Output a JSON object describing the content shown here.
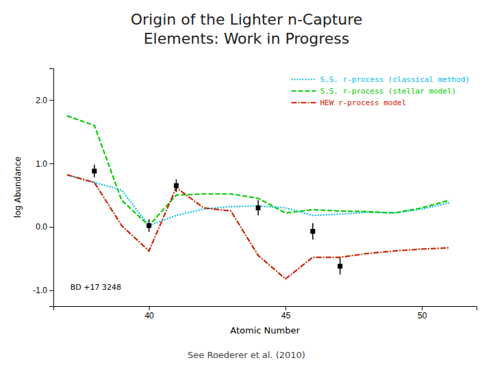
{
  "chart_data": {
    "type": "line",
    "title": "Origin of the Lighter n-Capture\nElements: Work in Progress",
    "subtitle": "See Roederer et al. (2010)",
    "x_label": "Atomic Number",
    "y_label": "log Abundance",
    "annotation": "BD +17 3248",
    "xlim": [
      36.5,
      52
    ],
    "ylim": [
      -1.25,
      2.5
    ],
    "xticks": [
      40,
      45,
      50
    ],
    "yticks": [
      {
        "value": -1.0,
        "label": "-1.0"
      },
      {
        "value": 0.0,
        "label": "0.0"
      },
      {
        "value": 1.0,
        "label": "1.0"
      },
      {
        "value": 2.0,
        "label": "2.0"
      }
    ],
    "legend": "upper right",
    "series": [
      {
        "name": "S.S. r-process (classical method)",
        "type": "line",
        "color": "#00bbee",
        "line_style": "dotted",
        "x": [
          37.0,
          38.0,
          39.0,
          40.0,
          41.0,
          42.0,
          43.0,
          44.0,
          45.0,
          46.0,
          47.0,
          48.0,
          49.0,
          50.0,
          51.0
        ],
        "values": [
          0.82,
          0.7,
          0.58,
          0.02,
          0.18,
          0.28,
          0.32,
          0.33,
          0.3,
          0.18,
          0.2,
          0.23,
          0.22,
          0.28,
          0.38
        ]
      },
      {
        "name": "S.S. r-process (stellar model)",
        "type": "line",
        "color": "#00cc00",
        "line_style": "dashed",
        "x": [
          37.0,
          38.0,
          39.0,
          40.0,
          41.0,
          42.0,
          43.0,
          44.0,
          45.0,
          46.0,
          47.0,
          48.0,
          49.0,
          50.0,
          51.0
        ],
        "values": [
          1.75,
          1.6,
          0.42,
          0.02,
          0.5,
          0.52,
          0.52,
          0.45,
          0.22,
          0.27,
          0.25,
          0.24,
          0.22,
          0.3,
          0.42
        ]
      },
      {
        "name": "HEW r-process model",
        "type": "line",
        "color": "#cc2200",
        "line_style": "dashdot",
        "x": [
          37.0,
          38.0,
          39.0,
          40.0,
          41.0,
          42.0,
          43.0,
          44.0,
          45.0,
          46.0,
          47.0,
          48.0,
          49.0,
          50.0,
          51.0
        ],
        "values": [
          0.82,
          0.7,
          0.02,
          -0.38,
          0.62,
          0.3,
          0.25,
          -0.45,
          -0.82,
          -0.48,
          -0.48,
          -0.42,
          -0.38,
          -0.35,
          -0.33
        ]
      },
      {
        "type": "scatter",
        "marker": "square",
        "color": "#000000",
        "x": [
          38,
          40,
          41,
          44,
          46,
          47
        ],
        "values": [
          0.88,
          0.02,
          0.65,
          0.3,
          -0.07,
          -0.62
        ],
        "errors": [
          0.1,
          0.1,
          0.1,
          0.12,
          0.13,
          0.13
        ]
      }
    ]
  }
}
